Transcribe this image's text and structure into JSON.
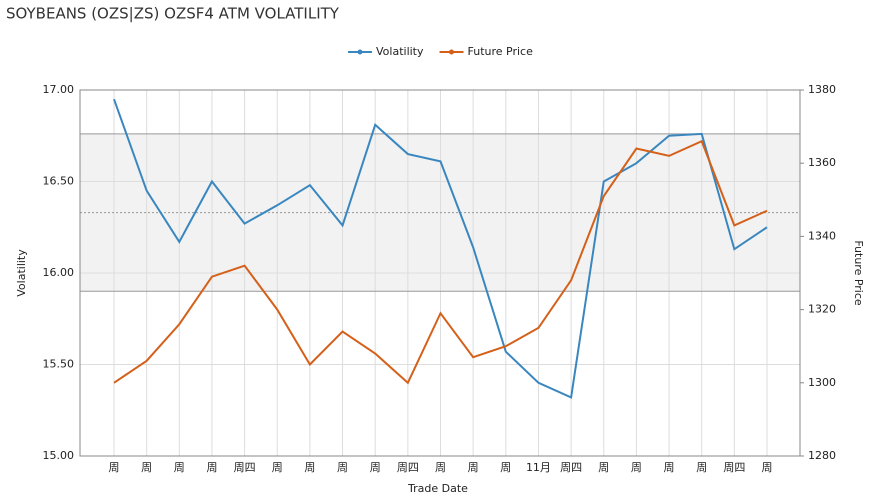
{
  "chart_data": {
    "type": "line",
    "title": "SOYBEANS (OZS|ZS) OZSF4 ATM VOLATILITY",
    "x_label": "Trade Date",
    "y_label": "Volatility",
    "y2_label": "Future Price",
    "categories": [
      "周",
      "周",
      "周",
      "周",
      "周四",
      "周",
      "周",
      "周",
      "周",
      "周四",
      "周",
      "周",
      "周",
      "11月",
      "周四",
      "周",
      "周",
      "周",
      "周",
      "周四",
      "周"
    ],
    "series": [
      {
        "name": "Volatility",
        "color": "#3a87c0",
        "values": [
          16.95,
          16.45,
          16.17,
          16.5,
          16.27,
          16.37,
          16.48,
          16.26,
          16.81,
          16.65,
          16.61,
          16.14,
          15.57,
          15.4,
          15.32,
          16.5,
          16.6,
          16.75,
          16.76,
          16.13,
          16.25
        ]
      },
      {
        "name": "Future Price",
        "color": "#d4601a",
        "axis": "y2",
        "values": [
          1300,
          1306,
          1316,
          1329,
          1332,
          1320,
          1305,
          1314,
          1308,
          1300,
          1319,
          1307,
          1310,
          1315,
          1328,
          1351,
          1364,
          1362,
          1366,
          1343,
          1347
        ]
      }
    ],
    "band": {
      "upper": 16.76,
      "mean": 16.33,
      "lower": 15.9
    },
    "ylim": [
      15,
      17
    ],
    "yticks": [
      {
        "value": 15,
        "label": "15.00"
      },
      {
        "value": 15.5,
        "label": "15.50"
      },
      {
        "value": 16,
        "label": "16.00"
      },
      {
        "value": 16.5,
        "label": "16.50"
      },
      {
        "value": 17,
        "label": "17.00"
      }
    ],
    "y2lim": [
      1280,
      1380
    ],
    "y2ticks": [
      1280,
      1300,
      1320,
      1340,
      1360,
      1380
    ],
    "grid": true,
    "legend": "top"
  }
}
